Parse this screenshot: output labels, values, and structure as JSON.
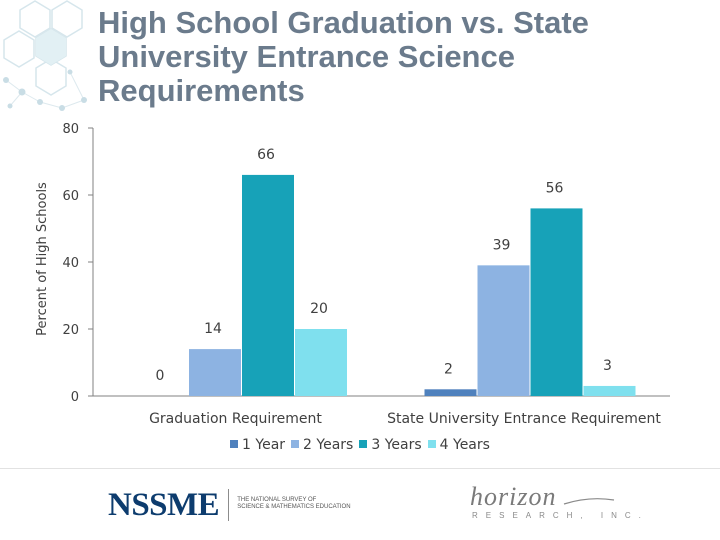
{
  "title": "High School Graduation vs. State University Entrance Science Requirements",
  "chart_data": {
    "type": "bar",
    "ylabel": "Percent of High Schools",
    "xlabel": "",
    "ylim": [
      0,
      80
    ],
    "yticks": [
      0,
      20,
      40,
      60,
      80
    ],
    "grid": false,
    "legend_position": "bottom",
    "categories": [
      "Graduation Requirement",
      "State University Entrance Requirement"
    ],
    "series": [
      {
        "name": "1 Year",
        "values": [
          0,
          2
        ],
        "labels": [
          "0",
          "2"
        ],
        "color": "#4f81bd"
      },
      {
        "name": "2 Years",
        "values": [
          14,
          39
        ],
        "labels": [
          "14",
          "39"
        ],
        "color": "#8db3e2"
      },
      {
        "name": "3 Years",
        "values": [
          66,
          56
        ],
        "labels": [
          "66",
          "56"
        ],
        "color": "#17a2b8"
      },
      {
        "name": "4 Years",
        "values": [
          20,
          3
        ],
        "labels": [
          "20",
          "3"
        ],
        "color": "#7fe0ee"
      }
    ]
  },
  "footer": {
    "logo_left": "NSSME",
    "logo_left_sub_1": "THE NATIONAL SURVEY OF",
    "logo_left_sub_2": "SCIENCE & MATHEMATICS EDUCATION",
    "logo_right": "horizon",
    "logo_right_sub": "RESEARCH, INC."
  }
}
